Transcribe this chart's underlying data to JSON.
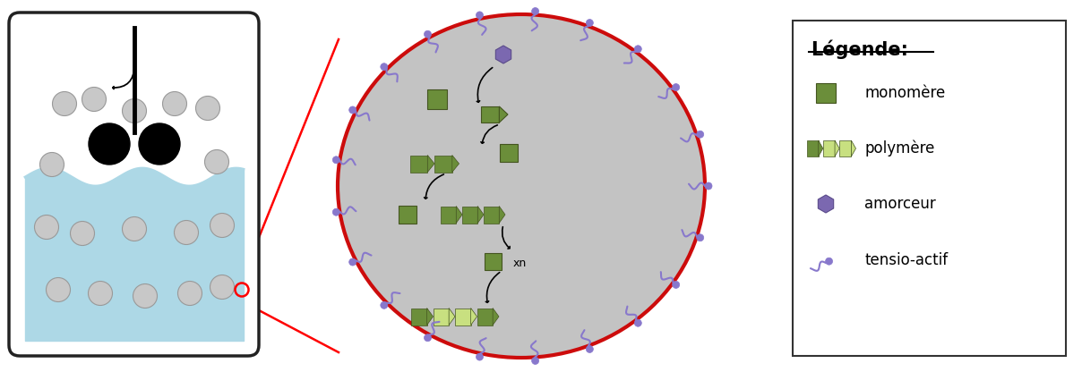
{
  "fig_width": 12.08,
  "fig_height": 4.16,
  "dpi": 100,
  "bg_color": "#ffffff",
  "monomer_color": "#6b8e3a",
  "polymer_color": "#6b8e3a",
  "initiator_color": "#7b68b0",
  "surfactant_color": "#8878cc",
  "droplet_fill": "#c0c0c0",
  "droplet_outline": "#cc0000",
  "reactor_fill": "#add8e6",
  "reactor_border": "#222222",
  "legend_title": "Légende:",
  "legend_monomer": "monomère",
  "legend_polymer": "polymère",
  "legend_initiator": "amorceur",
  "legend_surfactant": "tensio-actif"
}
